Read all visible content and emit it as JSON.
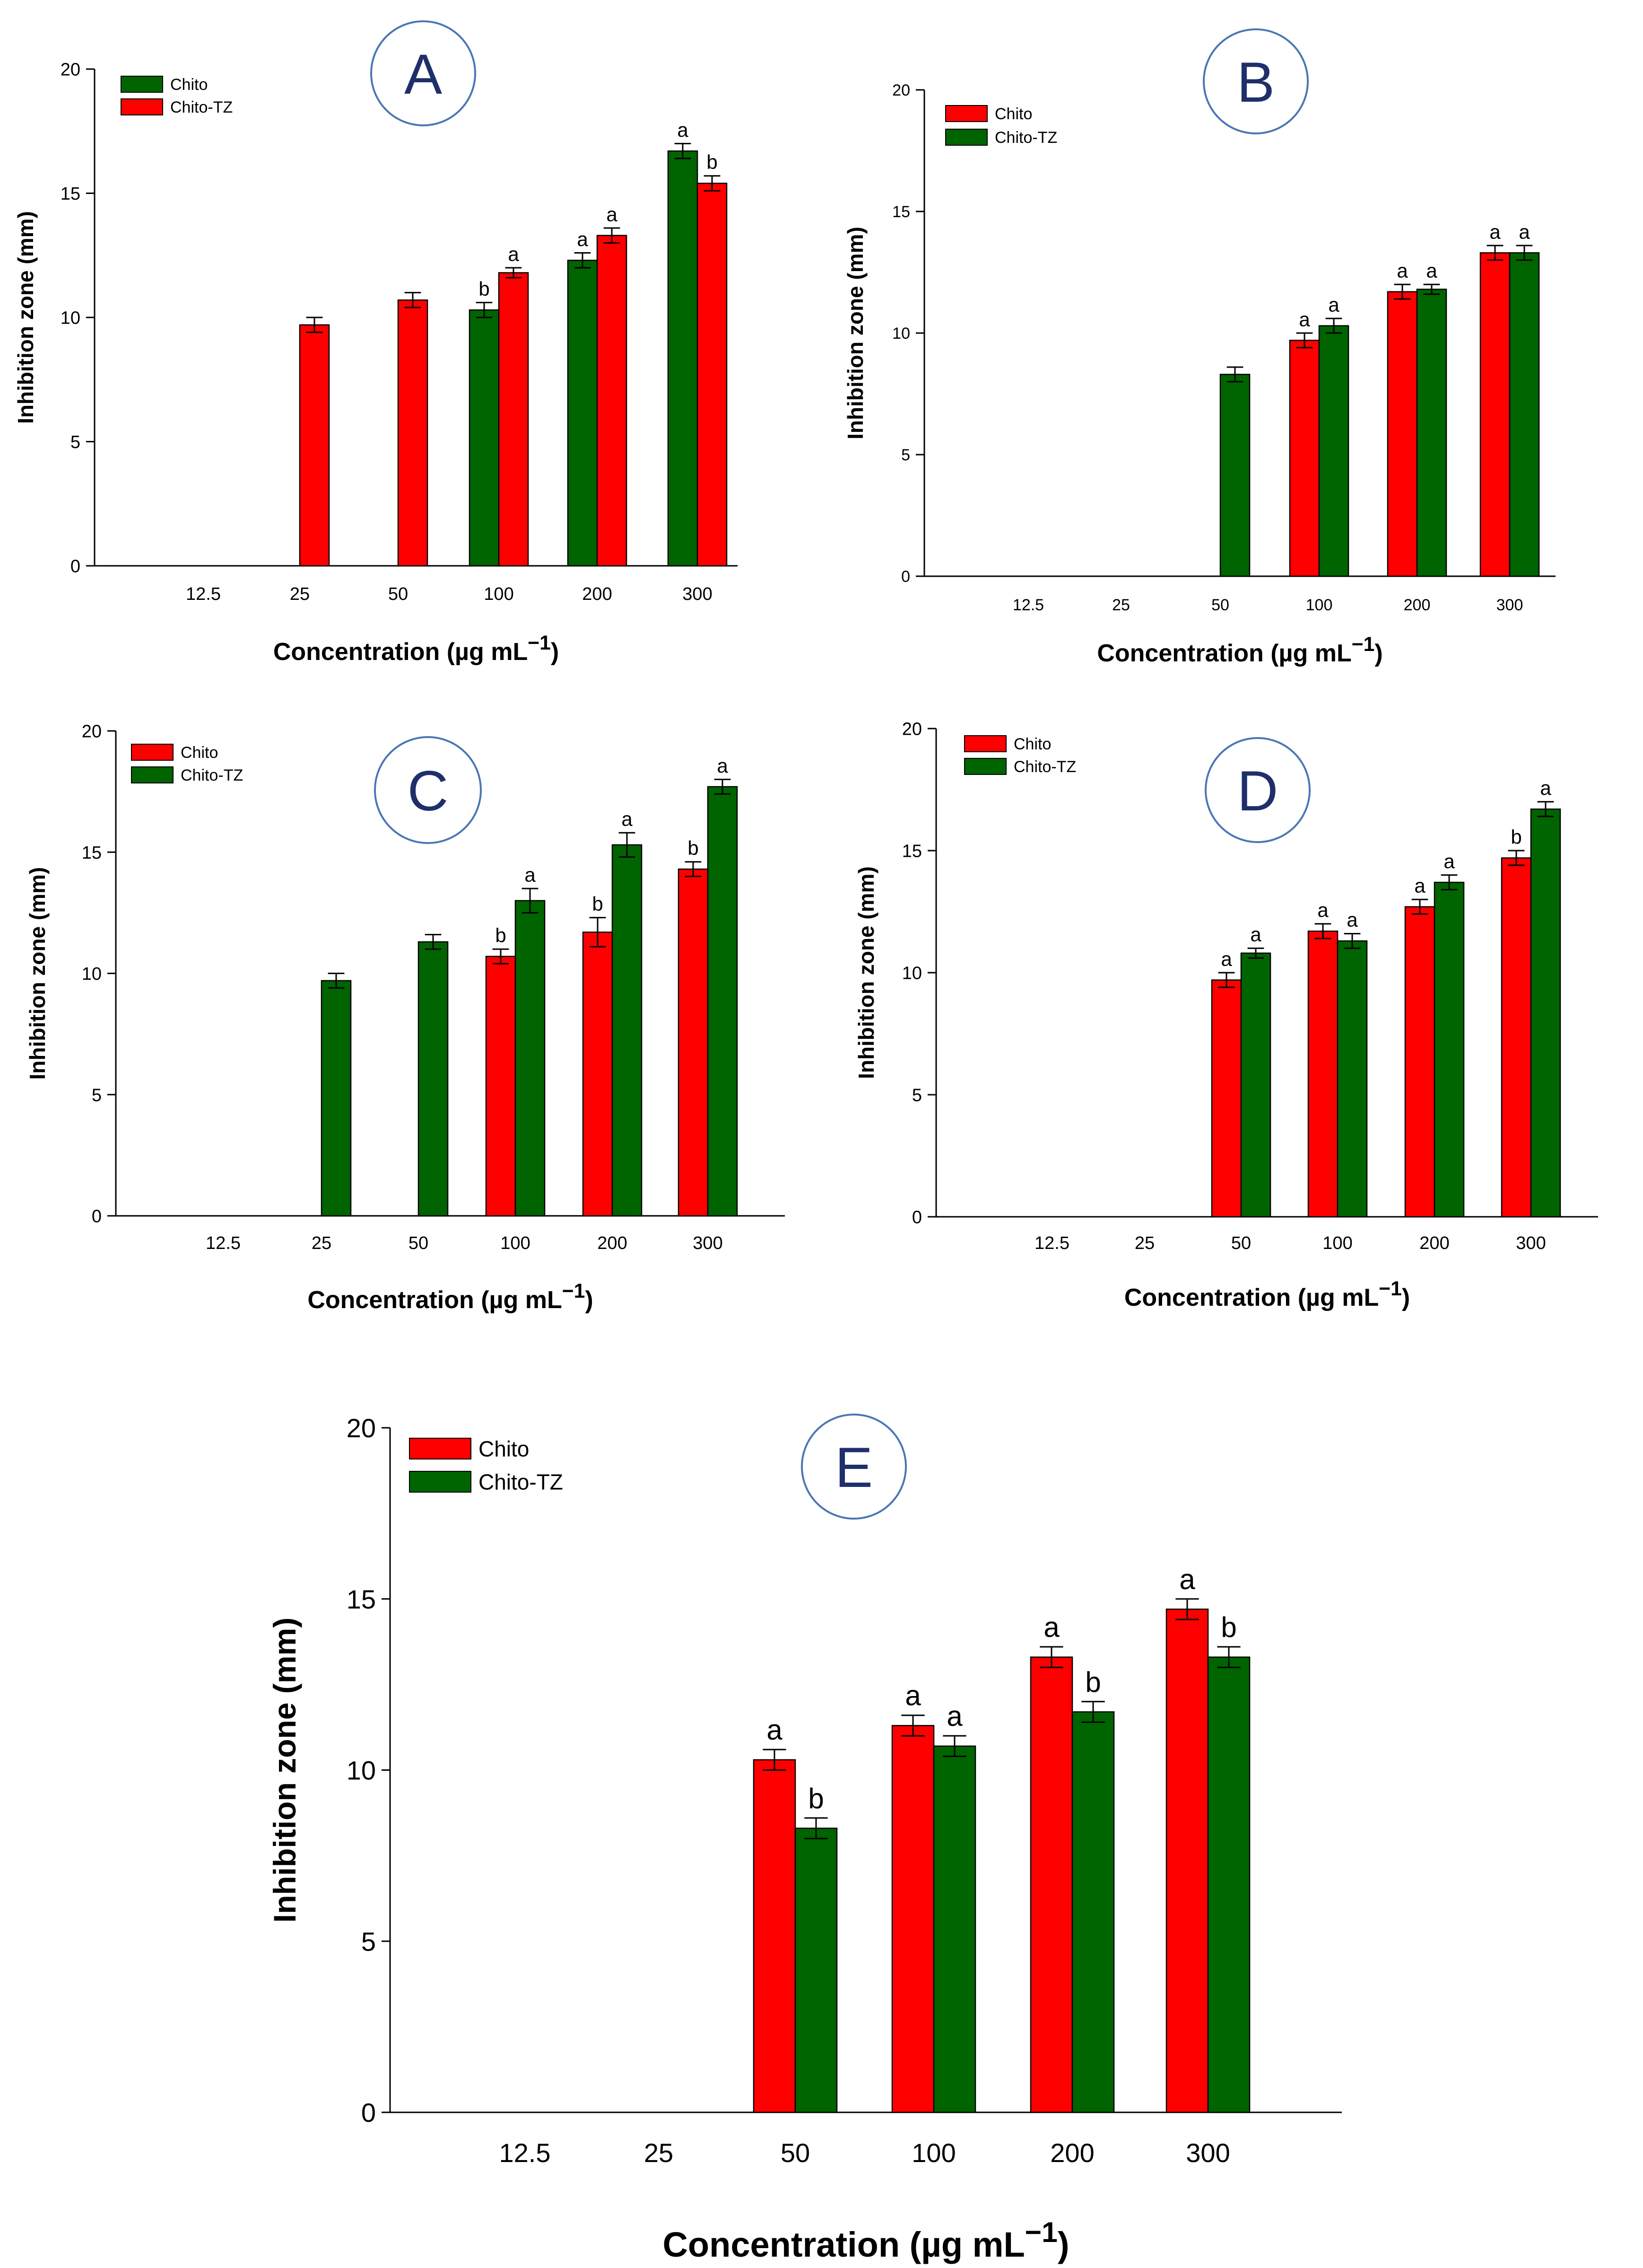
{
  "colors": {
    "red": "#ff0000",
    "green": "#006400",
    "circle": "#4a76b3",
    "letter": "#1f2f6b"
  },
  "chart_data": [
    {
      "type": "bar",
      "panel": "A",
      "categories": [
        "12.5",
        "25",
        "50",
        "100",
        "200",
        "300"
      ],
      "ylim": [
        0,
        20
      ],
      "yticks": [
        "0",
        "5",
        "10",
        "15",
        "20"
      ],
      "xlabel": "Concentration (µg mL",
      "xlabel_sup": "−1",
      "xlabel_close": ")",
      "ylabel": "Inhibition zone (mm)",
      "legend_position": "top-left",
      "series": [
        {
          "name": "Chito",
          "color": "#006400",
          "values": [
            0,
            0,
            0,
            10.3,
            12.3,
            16.7
          ],
          "errors": [
            0,
            0,
            0,
            0.3,
            0.3,
            0.3
          ],
          "labels": [
            "",
            "",
            "",
            "b",
            "a",
            "a"
          ]
        },
        {
          "name": "Chito-TZ",
          "color": "#ff0000",
          "values": [
            0,
            9.7,
            10.7,
            11.8,
            13.3,
            15.4
          ],
          "errors": [
            0,
            0.3,
            0.3,
            0.2,
            0.3,
            0.3
          ],
          "labels": [
            "",
            "",
            "",
            "a",
            "a",
            "b"
          ]
        }
      ]
    },
    {
      "type": "bar",
      "panel": "B",
      "categories": [
        "12.5",
        "25",
        "50",
        "100",
        "200",
        "300"
      ],
      "ylim": [
        0,
        20
      ],
      "yticks": [
        "0",
        "5",
        "10",
        "15",
        "20"
      ],
      "xlabel": "Concentration (µg mL",
      "xlabel_sup": "−1",
      "xlabel_close": ")",
      "ylabel": "Inhibition zone (mm)",
      "legend_position": "top-left",
      "series": [
        {
          "name": "Chito",
          "color": "#ff0000",
          "values": [
            0,
            0,
            0,
            9.7,
            11.7,
            13.3
          ],
          "errors": [
            0,
            0,
            0,
            0.3,
            0.3,
            0.3
          ],
          "labels": [
            "",
            "",
            "",
            "a",
            "a",
            "a"
          ]
        },
        {
          "name": "Chito-TZ",
          "color": "#006400",
          "values": [
            0,
            0,
            8.3,
            10.3,
            11.8,
            13.3
          ],
          "errors": [
            0,
            0,
            0.3,
            0.3,
            0.2,
            0.3
          ],
          "labels": [
            "",
            "",
            "",
            "a",
            "a",
            "a"
          ]
        }
      ]
    },
    {
      "type": "bar",
      "panel": "C",
      "categories": [
        "12.5",
        "25",
        "50",
        "100",
        "200",
        "300"
      ],
      "ylim": [
        0,
        20
      ],
      "yticks": [
        "0",
        "5",
        "10",
        "15",
        "20"
      ],
      "xlabel": "Concentration (µg mL",
      "xlabel_sup": "−1",
      "xlabel_close": ")",
      "ylabel": "Inhibition zone (mm)",
      "legend_position": "top-left",
      "series": [
        {
          "name": "Chito",
          "color": "#ff0000",
          "values": [
            0,
            0,
            0,
            10.7,
            11.7,
            14.3
          ],
          "errors": [
            0,
            0,
            0,
            0.3,
            0.6,
            0.3
          ],
          "labels": [
            "",
            "",
            "",
            "b",
            "b",
            "b"
          ]
        },
        {
          "name": "Chito-TZ",
          "color": "#006400",
          "values": [
            0,
            9.7,
            11.3,
            13.0,
            15.3,
            17.7
          ],
          "errors": [
            0,
            0.3,
            0.3,
            0.5,
            0.5,
            0.3
          ],
          "labels": [
            "",
            "",
            "",
            "a",
            "a",
            "a"
          ]
        }
      ]
    },
    {
      "type": "bar",
      "panel": "D",
      "categories": [
        "12.5",
        "25",
        "50",
        "100",
        "200",
        "300"
      ],
      "ylim": [
        0,
        20
      ],
      "yticks": [
        "0",
        "5",
        "10",
        "15",
        "20"
      ],
      "xlabel": "Concentration (µg mL",
      "xlabel_sup": "−1",
      "xlabel_close": ")",
      "ylabel": "Inhibition zone (mm)",
      "legend_position": "top-left",
      "series": [
        {
          "name": "Chito",
          "color": "#ff0000",
          "values": [
            0,
            0,
            9.7,
            11.7,
            12.7,
            14.7
          ],
          "errors": [
            0,
            0,
            0.3,
            0.3,
            0.3,
            0.3
          ],
          "labels": [
            "",
            "",
            "a",
            "a",
            "a",
            "b"
          ]
        },
        {
          "name": "Chito-TZ",
          "color": "#006400",
          "values": [
            0,
            0,
            10.8,
            11.3,
            13.7,
            16.7
          ],
          "errors": [
            0,
            0,
            0.2,
            0.3,
            0.3,
            0.3
          ],
          "labels": [
            "",
            "",
            "a",
            "a",
            "a",
            "a"
          ]
        }
      ]
    },
    {
      "type": "bar",
      "panel": "E",
      "categories": [
        "12.5",
        "25",
        "50",
        "100",
        "200",
        "300"
      ],
      "ylim": [
        0,
        20
      ],
      "yticks": [
        "0",
        "5",
        "10",
        "15",
        "20"
      ],
      "xlabel": "Concentration (µg mL",
      "xlabel_sup": "−1",
      "xlabel_close": ")",
      "ylabel": "Inhibition zone (mm)",
      "legend_position": "top-left",
      "series": [
        {
          "name": "Chito",
          "color": "#ff0000",
          "values": [
            0,
            0,
            10.3,
            11.3,
            13.3,
            14.7
          ],
          "errors": [
            0,
            0,
            0.3,
            0.3,
            0.3,
            0.3
          ],
          "labels": [
            "",
            "",
            "a",
            "a",
            "a",
            "a"
          ]
        },
        {
          "name": "Chito-TZ",
          "color": "#006400",
          "values": [
            0,
            0,
            8.3,
            10.7,
            11.7,
            13.3
          ],
          "errors": [
            0,
            0,
            0.3,
            0.3,
            0.3,
            0.3
          ],
          "labels": [
            "",
            "",
            "b",
            "a",
            "b",
            "b"
          ]
        }
      ]
    }
  ]
}
